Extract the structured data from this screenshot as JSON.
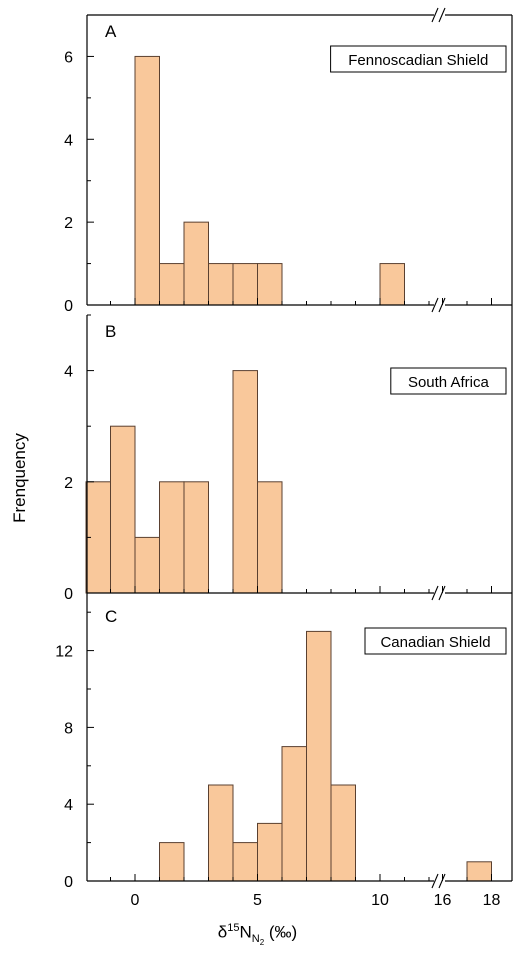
{
  "chart_data": [
    {
      "type": "bar",
      "panel": "A",
      "title": "Fennoscadian Shield",
      "bin_width": 1,
      "ylim": [
        0,
        7
      ],
      "yticks": [
        0,
        2,
        4,
        6
      ],
      "bins": [
        {
          "start": 0,
          "end": 1,
          "value": 6
        },
        {
          "start": 1,
          "end": 2,
          "value": 1
        },
        {
          "start": 2,
          "end": 3,
          "value": 2
        },
        {
          "start": 3,
          "end": 4,
          "value": 1
        },
        {
          "start": 4,
          "end": 5,
          "value": 1
        },
        {
          "start": 5,
          "end": 6,
          "value": 1
        },
        {
          "start": 10,
          "end": 11,
          "value": 1
        }
      ]
    },
    {
      "type": "bar",
      "panel": "B",
      "title": "South Africa",
      "bin_width": 1,
      "ylim": [
        0,
        5
      ],
      "yticks": [
        0,
        2,
        4
      ],
      "bins": [
        {
          "start": -2,
          "end": -1,
          "value": 2
        },
        {
          "start": -1,
          "end": 0,
          "value": 3
        },
        {
          "start": 0,
          "end": 1,
          "value": 1
        },
        {
          "start": 1,
          "end": 2,
          "value": 2
        },
        {
          "start": 2,
          "end": 3,
          "value": 2
        },
        {
          "start": 4,
          "end": 5,
          "value": 4
        },
        {
          "start": 5,
          "end": 6,
          "value": 2
        }
      ]
    },
    {
      "type": "bar",
      "panel": "C",
      "title": "Canadian Shield",
      "bin_width": 1,
      "ylim": [
        0,
        15
      ],
      "yticks": [
        0,
        4,
        8,
        12
      ],
      "bins": [
        {
          "start": 1,
          "end": 2,
          "value": 2
        },
        {
          "start": 3,
          "end": 4,
          "value": 5
        },
        {
          "start": 4,
          "end": 5,
          "value": 2
        },
        {
          "start": 5,
          "end": 6,
          "value": 3
        },
        {
          "start": 6,
          "end": 7,
          "value": 7
        },
        {
          "start": 7,
          "end": 8,
          "value": 13
        },
        {
          "start": 8,
          "end": 9,
          "value": 5
        },
        {
          "start": 17,
          "end": 18,
          "value": 1
        }
      ]
    }
  ],
  "x_axis": {
    "ticks": [
      0,
      5,
      10,
      16,
      18
    ],
    "break": "between 12 and 16",
    "label_prefix": "δ",
    "label_sup": "15",
    "label_main": "N",
    "label_sub": "N",
    "label_subsub": "2",
    "label_suffix": " (‰)"
  },
  "ylabel": "Frenquency",
  "colors": {
    "bar_fill": "#f9c89b",
    "bar_stroke": "#5a4030",
    "axis": "#000000"
  }
}
